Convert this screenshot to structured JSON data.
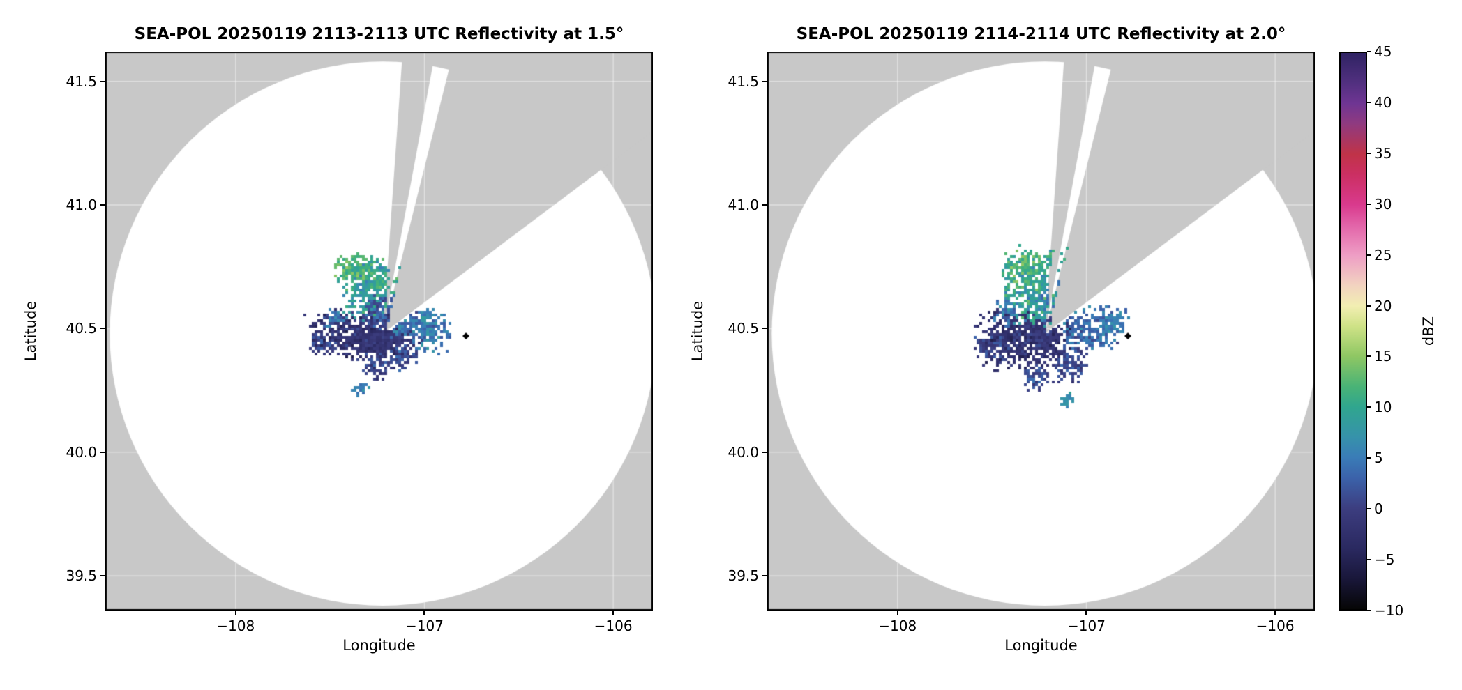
{
  "style": {
    "masked_color": "#c8c8c8",
    "coverage_color": "#ffffff",
    "frame_color": "#000000",
    "grid_color": "rgba(255,255,255,0.45)",
    "text_color": "#000000"
  },
  "colorbar": {
    "label": "dBZ",
    "min": -10,
    "max": 45,
    "ticks": [
      {
        "v": 45,
        "label": "45"
      },
      {
        "v": 40,
        "label": "40"
      },
      {
        "v": 35,
        "label": "35"
      },
      {
        "v": 30,
        "label": "30"
      },
      {
        "v": 25,
        "label": "25"
      },
      {
        "v": 20,
        "label": "20"
      },
      {
        "v": 15,
        "label": "15"
      },
      {
        "v": 10,
        "label": "10"
      },
      {
        "v": 5,
        "label": "5"
      },
      {
        "v": 0,
        "label": "0"
      },
      {
        "v": -5,
        "label": "−5"
      },
      {
        "v": -10,
        "label": "−10"
      }
    ],
    "stops": [
      {
        "v": -10,
        "c": "#060606"
      },
      {
        "v": -7,
        "c": "#19173a"
      },
      {
        "v": -4,
        "c": "#2a2960"
      },
      {
        "v": -1,
        "c": "#383878"
      },
      {
        "v": 0,
        "c": "#3c3e80"
      },
      {
        "v": 3,
        "c": "#3b62aa"
      },
      {
        "v": 5,
        "c": "#3a7cb7"
      },
      {
        "v": 7,
        "c": "#3692ab"
      },
      {
        "v": 10,
        "c": "#30a68e"
      },
      {
        "v": 12,
        "c": "#49b376"
      },
      {
        "v": 15,
        "c": "#8fc763"
      },
      {
        "v": 18,
        "c": "#cfe287"
      },
      {
        "v": 20,
        "c": "#f2eeb2"
      },
      {
        "v": 22,
        "c": "#f2d3c0"
      },
      {
        "v": 25,
        "c": "#ee9ec5"
      },
      {
        "v": 28,
        "c": "#e263a8"
      },
      {
        "v": 30,
        "c": "#d93a8d"
      },
      {
        "v": 33,
        "c": "#cb2f62"
      },
      {
        "v": 35,
        "c": "#c03348"
      },
      {
        "v": 38,
        "c": "#8f3a80"
      },
      {
        "v": 40,
        "c": "#6f3593"
      },
      {
        "v": 42,
        "c": "#523080"
      },
      {
        "v": 45,
        "c": "#2f2363"
      }
    ]
  },
  "chart_data": [
    {
      "type": "heatmap",
      "title": "SEA-POL 20250119 2113-2113 UTC Reflectivity at 1.5°",
      "xlabel": "Longitude",
      "ylabel": "Latitude",
      "units": "dBZ",
      "xlim": [
        -108.69,
        -105.79
      ],
      "ylim": [
        39.36,
        41.62
      ],
      "xticks": [
        {
          "v": -108,
          "label": "−108"
        },
        {
          "v": -107,
          "label": "−107"
        },
        {
          "v": -106,
          "label": "−106"
        }
      ],
      "yticks": [
        {
          "v": 39.5,
          "label": "39.5"
        },
        {
          "v": 40.0,
          "label": "40.0"
        },
        {
          "v": 40.5,
          "label": "40.5"
        },
        {
          "v": 41.0,
          "label": "41.0"
        },
        {
          "v": 41.5,
          "label": "41.5"
        }
      ],
      "radar": {
        "lon": -107.22,
        "lat": 40.48,
        "radius_lat_deg": 1.1,
        "lon_scale": 1.315
      },
      "blocked_sectors": [
        {
          "az_start": 4,
          "az_end": 10.5
        },
        {
          "az_start": 14,
          "az_end": 53
        }
      ],
      "marker": {
        "lon": -106.78,
        "lat": 40.47,
        "shape": "diamond",
        "color": "#000000"
      },
      "seed": 20250119,
      "echo_clusters": [
        {
          "cx": -107.33,
          "cy": 40.48,
          "rx": 0.2,
          "ry": 0.07,
          "n": 600,
          "dbz": [
            -6,
            2
          ]
        },
        {
          "cx": -107.22,
          "cy": 40.47,
          "rx": 0.1,
          "ry": 0.05,
          "n": 250,
          "dbz": [
            -4,
            1
          ]
        },
        {
          "cx": -107.13,
          "cy": 40.55,
          "rx": 0.07,
          "ry": 0.06,
          "n": 150,
          "dbz": [
            0,
            8
          ]
        },
        {
          "cx": -106.99,
          "cy": 40.5,
          "rx": 0.08,
          "ry": 0.06,
          "n": 200,
          "dbz": [
            1,
            9
          ]
        },
        {
          "cx": -107.3,
          "cy": 40.66,
          "rx": 0.1,
          "ry": 0.08,
          "n": 250,
          "dbz": [
            4,
            13
          ]
        },
        {
          "cx": -107.36,
          "cy": 40.74,
          "rx": 0.09,
          "ry": 0.05,
          "n": 150,
          "dbz": [
            8,
            16
          ]
        },
        {
          "cx": -107.2,
          "cy": 40.7,
          "rx": 0.05,
          "ry": 0.05,
          "n": 80,
          "dbz": [
            6,
            14
          ]
        },
        {
          "cx": -107.24,
          "cy": 40.58,
          "rx": 0.06,
          "ry": 0.05,
          "n": 100,
          "dbz": [
            -2,
            6
          ]
        },
        {
          "cx": -107.26,
          "cy": 40.36,
          "rx": 0.06,
          "ry": 0.04,
          "n": 70,
          "dbz": [
            -4,
            4
          ]
        },
        {
          "cx": -107.12,
          "cy": 40.39,
          "rx": 0.05,
          "ry": 0.04,
          "n": 60,
          "dbz": [
            -3,
            6
          ]
        },
        {
          "cx": -107.35,
          "cy": 40.26,
          "rx": 0.03,
          "ry": 0.02,
          "n": 25,
          "dbz": [
            2,
            8
          ]
        },
        {
          "cx": -107.55,
          "cy": 40.44,
          "rx": 0.05,
          "ry": 0.03,
          "n": 40,
          "dbz": [
            -3,
            4
          ]
        },
        {
          "cx": -107.47,
          "cy": 40.55,
          "rx": 0.04,
          "ry": 0.03,
          "n": 35,
          "dbz": [
            0,
            8
          ]
        }
      ]
    },
    {
      "type": "heatmap",
      "title": "SEA-POL 20250119 2114-2114 UTC Reflectivity at 2.0°",
      "xlabel": "Longitude",
      "ylabel": "Latitude",
      "units": "dBZ",
      "xlim": [
        -108.69,
        -105.79
      ],
      "ylim": [
        39.36,
        41.62
      ],
      "xticks": [
        {
          "v": -108,
          "label": "−108"
        },
        {
          "v": -107,
          "label": "−107"
        },
        {
          "v": -106,
          "label": "−106"
        }
      ],
      "yticks": [
        {
          "v": 39.5,
          "label": "39.5"
        },
        {
          "v": 40.0,
          "label": "40.0"
        },
        {
          "v": 40.5,
          "label": "40.5"
        },
        {
          "v": 41.0,
          "label": "41.0"
        },
        {
          "v": 41.5,
          "label": "41.5"
        }
      ],
      "radar": {
        "lon": -107.22,
        "lat": 40.48,
        "radius_lat_deg": 1.1,
        "lon_scale": 1.315
      },
      "blocked_sectors": [
        {
          "az_start": 4,
          "az_end": 10.5
        },
        {
          "az_start": 14,
          "az_end": 53
        }
      ],
      "marker": {
        "lon": -106.78,
        "lat": 40.47,
        "shape": "diamond",
        "color": "#000000"
      },
      "seed": 20250120,
      "echo_clusters": [
        {
          "cx": -107.33,
          "cy": 40.46,
          "rx": 0.18,
          "ry": 0.08,
          "n": 600,
          "dbz": [
            -6,
            2
          ]
        },
        {
          "cx": -107.25,
          "cy": 40.5,
          "rx": 0.08,
          "ry": 0.05,
          "n": 200,
          "dbz": [
            -4,
            2
          ]
        },
        {
          "cx": -107.28,
          "cy": 40.65,
          "rx": 0.11,
          "ry": 0.09,
          "n": 300,
          "dbz": [
            4,
            14
          ]
        },
        {
          "cx": -107.33,
          "cy": 40.75,
          "rx": 0.09,
          "ry": 0.06,
          "n": 180,
          "dbz": [
            7,
            16
          ]
        },
        {
          "cx": -107.18,
          "cy": 40.6,
          "rx": 0.06,
          "ry": 0.06,
          "n": 120,
          "dbz": [
            2,
            10
          ]
        },
        {
          "cx": -106.97,
          "cy": 40.5,
          "rx": 0.12,
          "ry": 0.06,
          "n": 220,
          "dbz": [
            0,
            8
          ]
        },
        {
          "cx": -106.86,
          "cy": 40.54,
          "rx": 0.05,
          "ry": 0.04,
          "n": 60,
          "dbz": [
            2,
            8
          ]
        },
        {
          "cx": -107.1,
          "cy": 40.36,
          "rx": 0.07,
          "ry": 0.05,
          "n": 90,
          "dbz": [
            -3,
            5
          ]
        },
        {
          "cx": -107.27,
          "cy": 40.31,
          "rx": 0.05,
          "ry": 0.04,
          "n": 60,
          "dbz": [
            -3,
            5
          ]
        },
        {
          "cx": -107.1,
          "cy": 40.22,
          "rx": 0.03,
          "ry": 0.025,
          "n": 25,
          "dbz": [
            4,
            10
          ]
        },
        {
          "cx": -107.5,
          "cy": 40.44,
          "rx": 0.06,
          "ry": 0.04,
          "n": 60,
          "dbz": [
            -3,
            4
          ]
        },
        {
          "cx": -107.16,
          "cy": 40.8,
          "rx": 0.05,
          "ry": 0.03,
          "n": 50,
          "dbz": [
            6,
            14
          ]
        },
        {
          "cx": -107.42,
          "cy": 40.57,
          "rx": 0.05,
          "ry": 0.04,
          "n": 50,
          "dbz": [
            1,
            9
          ]
        }
      ]
    }
  ]
}
